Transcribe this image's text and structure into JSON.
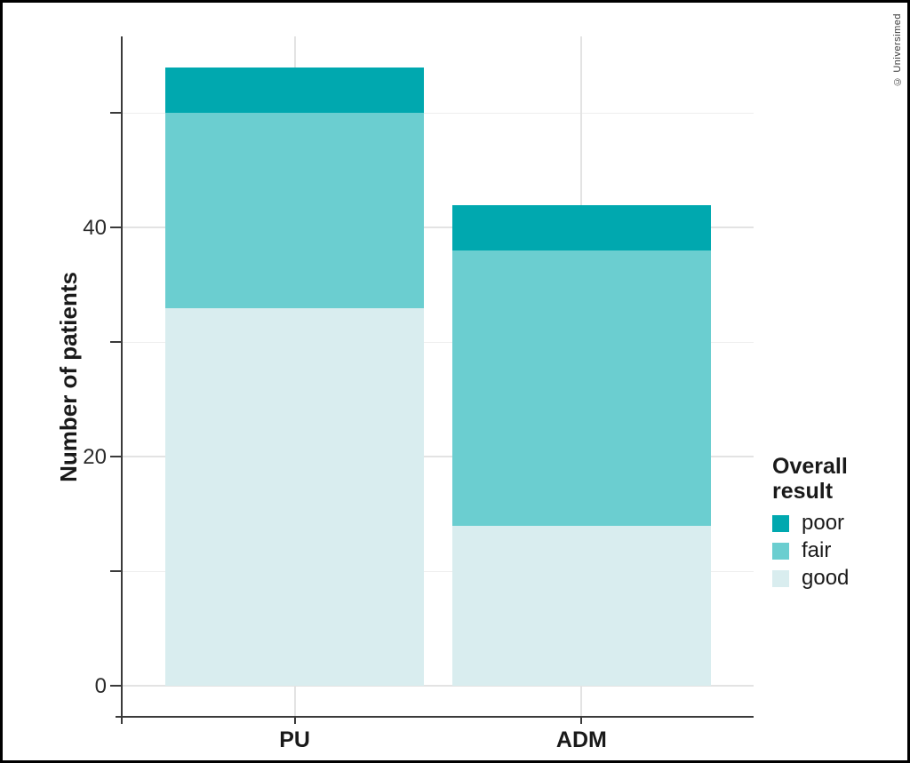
{
  "annotations": {
    "copyright": "© Universimed"
  },
  "chart_data": {
    "type": "bar",
    "stacked": true,
    "title": "",
    "xlabel": "",
    "ylabel": "Number of patients",
    "categories": [
      "PU",
      "ADM"
    ],
    "series": [
      {
        "name": "good",
        "color": "#d9edef",
        "values": [
          33,
          14
        ]
      },
      {
        "name": "fair",
        "color": "#6bced0",
        "values": [
          17,
          24
        ]
      },
      {
        "name": "poor",
        "color": "#00a8af",
        "values": [
          4,
          4
        ]
      }
    ],
    "ylim": [
      -2.7,
      56.7
    ],
    "yticks_major": [
      0,
      20,
      40
    ],
    "yticks_minor": [
      10,
      30,
      50
    ],
    "grid": true,
    "legend": {
      "title": "Overall result",
      "position": "right",
      "entries": [
        "poor",
        "fair",
        "good"
      ]
    },
    "axis_color": "#3a3a3a",
    "gridline_major_color": "#e3e3e3",
    "gridline_minor_color": "#eeeeee"
  }
}
